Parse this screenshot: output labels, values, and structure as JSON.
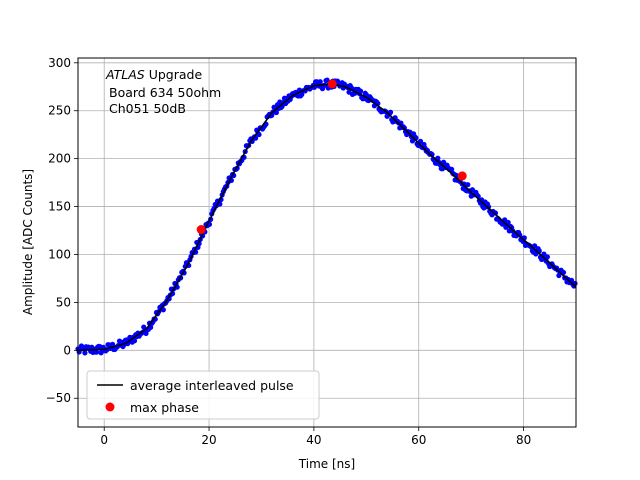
{
  "chart_data": {
    "type": "scatter",
    "xlabel": "Time [ns]",
    "ylabel": "Amplitude [ADC Counts]",
    "xlim": [
      -5,
      90
    ],
    "ylim": [
      -80,
      305
    ],
    "xticks": [
      0,
      20,
      40,
      60,
      80
    ],
    "yticks": [
      -50,
      0,
      50,
      100,
      150,
      200,
      250,
      300
    ],
    "grid": true,
    "legend_position": "lower-left",
    "annotation": {
      "experiment": "ATLAS",
      "qualifier": "Upgrade",
      "line2": "Board 634 50ohm",
      "line3": "Ch051 50dB"
    },
    "colors": {
      "samples": "#0000ff",
      "average": "#000000",
      "max_phase": "#ff0000"
    },
    "series": [
      {
        "name": "average interleaved pulse",
        "kind": "line",
        "x": [
          -5,
          0,
          4,
          8,
          12,
          16,
          20,
          24,
          28,
          32,
          36,
          40,
          43,
          46,
          50,
          54,
          58,
          62,
          66,
          70,
          74,
          78,
          82,
          86,
          90
        ],
        "y": [
          0,
          1,
          7,
          22,
          52,
          90,
          135,
          178,
          218,
          248,
          266,
          276,
          278,
          275,
          264,
          248,
          227,
          205,
          186,
          165,
          145,
          125,
          106,
          86,
          66
        ]
      },
      {
        "name": "max phase",
        "kind": "points",
        "x": [
          18.5,
          43.5,
          68.3
        ],
        "y": [
          126,
          278,
          182
        ]
      }
    ]
  }
}
